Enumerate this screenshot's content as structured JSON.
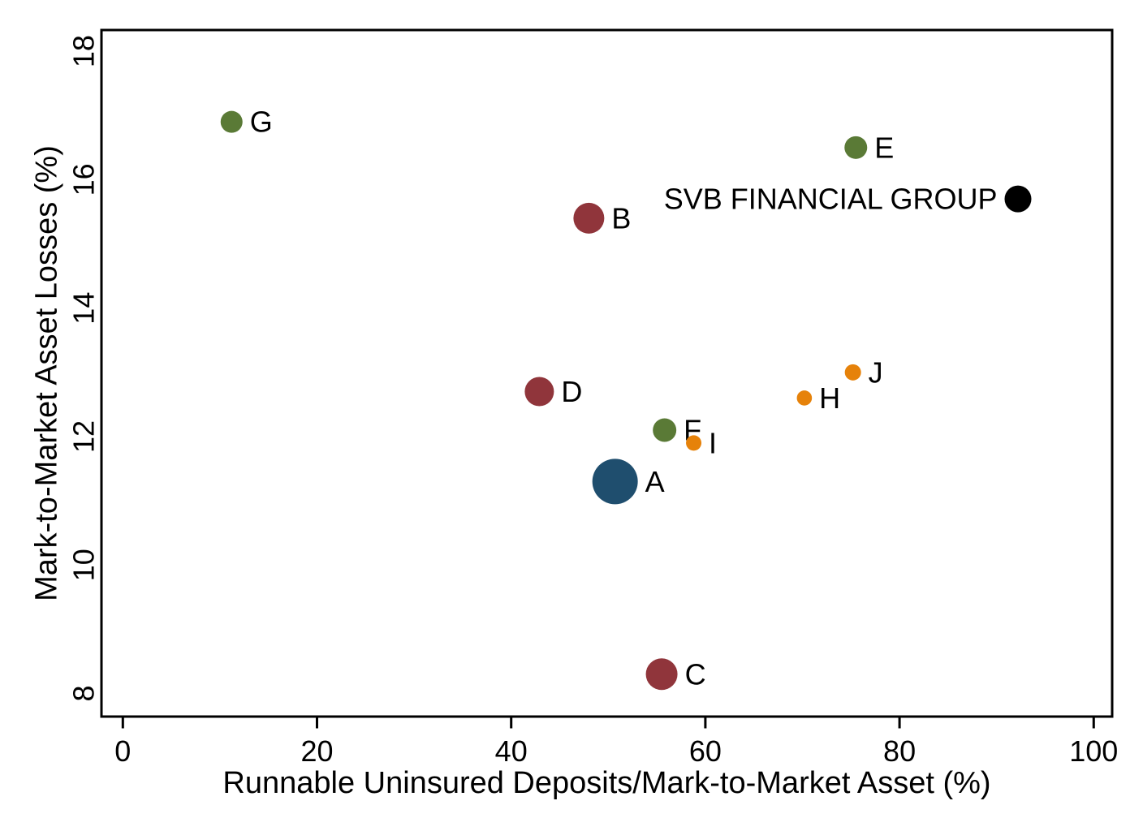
{
  "chart_data": {
    "type": "scatter",
    "title": "",
    "xlabel": "Runnable Uninsured Deposits/Mark-to-Market Asset (%)",
    "ylabel": "Mark-to-Market Asset Losses (%)",
    "xlim": [
      -2.2,
      101.9
    ],
    "ylim": [
      7.64,
      18.33
    ],
    "x_ticks": [
      0,
      20,
      40,
      60,
      80,
      100
    ],
    "y_ticks": [
      8,
      10,
      12,
      14,
      16,
      18
    ],
    "grid": false,
    "legend": "none",
    "axis_color": "#000000",
    "series_colors": {
      "blue": "#1f4e6e",
      "maroon": "#90353b",
      "green": "#5a7a36",
      "orange": "#e6820a",
      "black": "#000000"
    },
    "points": [
      {
        "label": "A",
        "x": 50.7,
        "y": 11.3,
        "radius_px": 28,
        "color": "#1f4e6e",
        "label_side": "right"
      },
      {
        "label": "B",
        "x": 48.0,
        "y": 15.4,
        "radius_px": 19,
        "color": "#90353b",
        "label_side": "right"
      },
      {
        "label": "C",
        "x": 55.5,
        "y": 8.3,
        "radius_px": 19.5,
        "color": "#90353b",
        "label_side": "right"
      },
      {
        "label": "D",
        "x": 42.9,
        "y": 12.7,
        "radius_px": 18,
        "color": "#90353b",
        "label_side": "right"
      },
      {
        "label": "E",
        "x": 75.5,
        "y": 16.5,
        "radius_px": 14,
        "color": "#5a7a36",
        "label_side": "right"
      },
      {
        "label": "F",
        "x": 55.8,
        "y": 12.1,
        "radius_px": 14.5,
        "color": "#5a7a36",
        "label_side": "right"
      },
      {
        "label": "G",
        "x": 11.2,
        "y": 16.9,
        "radius_px": 13.5,
        "color": "#5a7a36",
        "label_side": "right"
      },
      {
        "label": "H",
        "x": 70.2,
        "y": 12.6,
        "radius_px": 9.3,
        "color": "#e6820a",
        "label_side": "right"
      },
      {
        "label": "I",
        "x": 58.8,
        "y": 11.9,
        "radius_px": 9.5,
        "color": "#e6820a",
        "label_side": "right"
      },
      {
        "label": "J",
        "x": 75.2,
        "y": 13.0,
        "radius_px": 10,
        "color": "#e6820a",
        "label_side": "right"
      },
      {
        "label": "SVB FINANCIAL GROUP",
        "x": 92.2,
        "y": 15.7,
        "radius_px": 16.5,
        "color": "#000000",
        "label_side": "left"
      }
    ]
  }
}
